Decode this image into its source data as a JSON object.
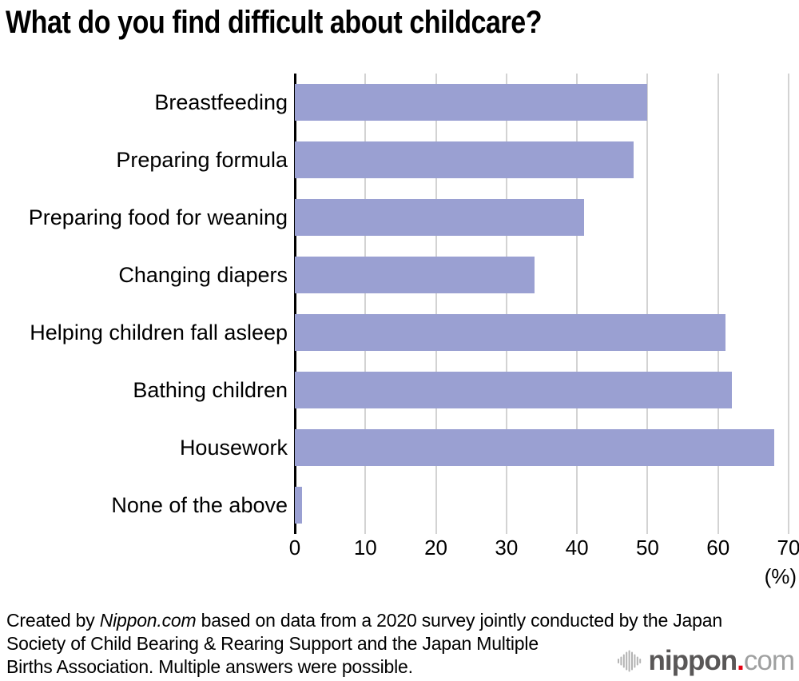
{
  "page": {
    "background": "#ffffff"
  },
  "header": {
    "title": "What do you find difficult about childcare?"
  },
  "chart_data": {
    "type": "bar",
    "orientation": "horizontal",
    "title": "What do you find difficult about childcare?",
    "categories": [
      "Breastfeeding",
      "Preparing formula",
      "Preparing food for weaning",
      "Changing diapers",
      "Helping children fall asleep",
      "Bathing children",
      "Housework",
      "None of the above"
    ],
    "values": [
      50,
      48,
      41,
      34,
      61,
      62,
      68,
      1
    ],
    "xlim": [
      0,
      70
    ],
    "xticks": [
      0,
      10,
      20,
      30,
      40,
      50,
      60,
      70
    ],
    "xlabel": "(%)",
    "ylabel": "",
    "grid": "vertical-gridlines-on",
    "legend": "none",
    "bar_color": "#9aa0d2",
    "gridline_color": "#d3d3d3",
    "axis_color": "#000000"
  },
  "footer": {
    "credit_prefix": "Created by ",
    "credit_source": "Nippon.com",
    "credit_line1_rest": " based on data from a 2020 survey jointly conducted by the Japan",
    "credit_line2": "Society of Child Bearing & Rearing Support and the Japan Multiple",
    "credit_line3": "Births Association. Multiple answers were possible.",
    "logo": {
      "name": "nippon",
      "dot": ".",
      "tld": "com"
    }
  }
}
